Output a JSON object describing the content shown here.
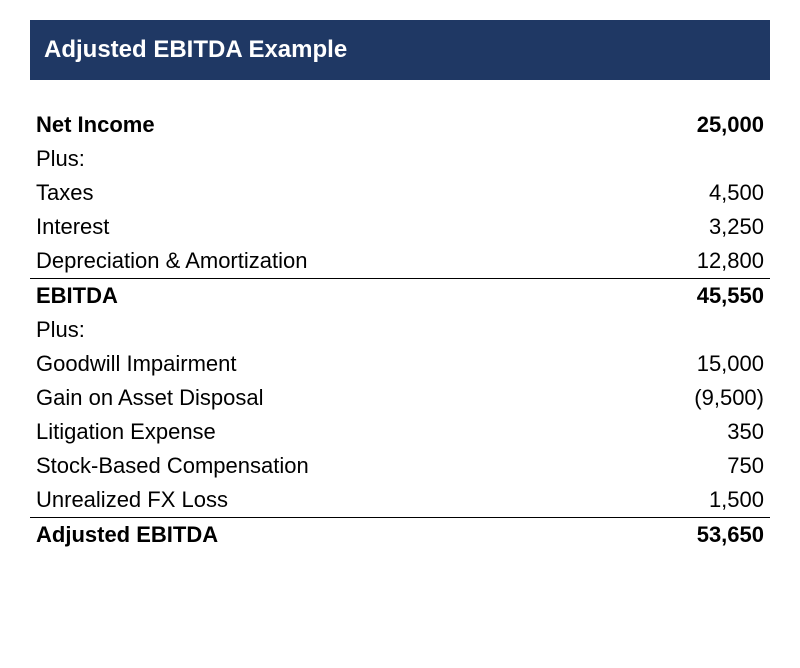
{
  "header": {
    "title": "Adjusted EBITDA Example",
    "bg_color": "#1f3864",
    "text_color": "#ffffff",
    "font_weight": "bold"
  },
  "table": {
    "type": "table",
    "columns": [
      "label",
      "value"
    ],
    "column_alignment": [
      "left",
      "right"
    ],
    "font_size_pt": 17,
    "text_color": "#000000",
    "border_color": "#000000",
    "rows": [
      {
        "label": "Net Income",
        "value": "25,000",
        "bold": true,
        "indent": false,
        "border_bottom": false,
        "numeric_value": 25000
      },
      {
        "label": "Plus:",
        "value": "",
        "bold": false,
        "indent": false,
        "border_bottom": false
      },
      {
        "label": "Taxes",
        "value": "4,500",
        "bold": false,
        "indent": true,
        "border_bottom": false,
        "numeric_value": 4500
      },
      {
        "label": "Interest",
        "value": "3,250",
        "bold": false,
        "indent": true,
        "border_bottom": false,
        "numeric_value": 3250
      },
      {
        "label": "Depreciation & Amortization",
        "value": "12,800",
        "bold": false,
        "indent": true,
        "border_bottom": true,
        "numeric_value": 12800
      },
      {
        "label": "EBITDA",
        "value": "45,550",
        "bold": true,
        "indent": false,
        "border_bottom": false,
        "numeric_value": 45550
      },
      {
        "label": "Plus:",
        "value": "",
        "bold": false,
        "indent": false,
        "border_bottom": false
      },
      {
        "label": "Goodwill Impairment",
        "value": "15,000",
        "bold": false,
        "indent": true,
        "border_bottom": false,
        "numeric_value": 15000
      },
      {
        "label": "Gain on Asset Disposal",
        "value": "(9,500)",
        "bold": false,
        "indent": true,
        "border_bottom": false,
        "numeric_value": -9500
      },
      {
        "label": "Litigation Expense",
        "value": "350",
        "bold": false,
        "indent": true,
        "border_bottom": false,
        "numeric_value": 350
      },
      {
        "label": "Stock-Based Compensation",
        "value": "750",
        "bold": false,
        "indent": true,
        "border_bottom": false,
        "numeric_value": 750
      },
      {
        "label": "Unrealized FX Loss",
        "value": "1,500",
        "bold": false,
        "indent": true,
        "border_bottom": true,
        "numeric_value": 1500
      },
      {
        "label": "Adjusted EBITDA",
        "value": "53,650",
        "bold": true,
        "indent": false,
        "border_bottom": false,
        "numeric_value": 53650
      }
    ]
  }
}
